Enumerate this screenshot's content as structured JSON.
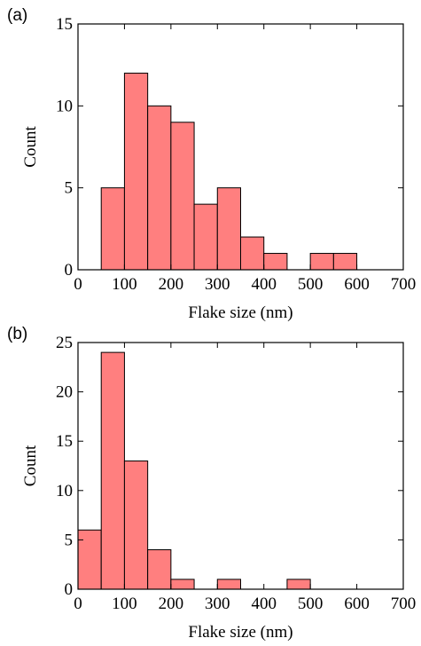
{
  "chart_data": [
    {
      "type": "histogram",
      "panel_label": "(a)",
      "xlabel": "Flake size (nm)",
      "ylabel": "Count",
      "bins": [
        50,
        100,
        150,
        200,
        250,
        300,
        350,
        400,
        450,
        500,
        550,
        600
      ],
      "values": [
        5,
        12,
        10,
        9,
        4,
        5,
        2,
        1,
        0,
        1,
        1
      ],
      "color": "#ff7f7f",
      "xlim": [
        0,
        700
      ],
      "xticks": [
        0,
        100,
        200,
        300,
        400,
        500,
        600,
        700
      ],
      "ylim": [
        0,
        15
      ],
      "yticks": [
        0,
        5,
        10,
        15
      ]
    },
    {
      "type": "histogram",
      "panel_label": "(b)",
      "xlabel": "Flake size (nm)",
      "ylabel": "Count",
      "bins": [
        0,
        50,
        100,
        150,
        200,
        250,
        300,
        350,
        400,
        450,
        500
      ],
      "values": [
        6,
        24,
        13,
        4,
        1,
        0,
        1,
        0,
        0,
        1
      ],
      "color": "#ff7f7f",
      "xlim": [
        0,
        700
      ],
      "xticks": [
        0,
        100,
        200,
        300,
        400,
        500,
        600,
        700
      ],
      "ylim": [
        0,
        25
      ],
      "yticks": [
        0,
        5,
        10,
        15,
        20,
        25
      ]
    }
  ]
}
